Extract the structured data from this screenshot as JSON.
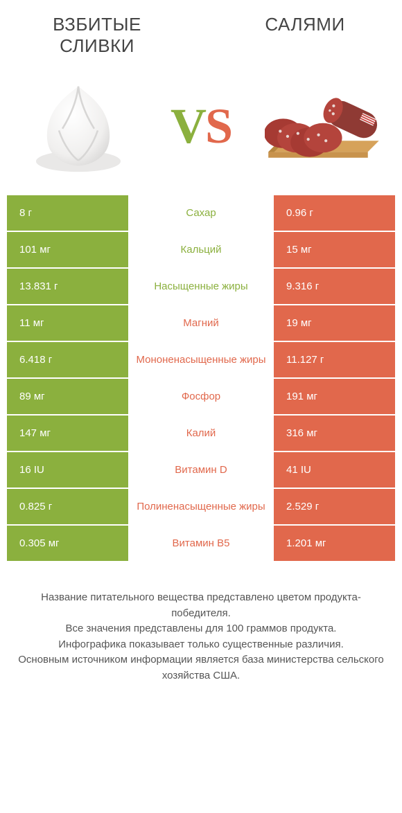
{
  "colors": {
    "green": "#8bb03e",
    "orange": "#e1684c",
    "text": "#444444",
    "rowBorder": "#ffffff"
  },
  "titles": {
    "left": "Взбитые сливки",
    "right": "Салями",
    "vs_v": "V",
    "vs_s": "S"
  },
  "rows": [
    {
      "label": "Сахар",
      "left": "8 г",
      "right": "0.96 г",
      "winner": "left"
    },
    {
      "label": "Кальций",
      "left": "101 мг",
      "right": "15 мг",
      "winner": "left"
    },
    {
      "label": "Насыщенные жиры",
      "left": "13.831 г",
      "right": "9.316 г",
      "winner": "left"
    },
    {
      "label": "Магний",
      "left": "11 мг",
      "right": "19 мг",
      "winner": "right"
    },
    {
      "label": "Мононенасыщенные жиры",
      "left": "6.418 г",
      "right": "11.127 г",
      "winner": "right"
    },
    {
      "label": "Фосфор",
      "left": "89 мг",
      "right": "191 мг",
      "winner": "right"
    },
    {
      "label": "Калий",
      "left": "147 мг",
      "right": "316 мг",
      "winner": "right"
    },
    {
      "label": "Витамин D",
      "left": "16 IU",
      "right": "41 IU",
      "winner": "right"
    },
    {
      "label": "Полиненасыщенные жиры",
      "left": "0.825 г",
      "right": "2.529 г",
      "winner": "right"
    },
    {
      "label": "Витамин B5",
      "left": "0.305 мг",
      "right": "1.201 мг",
      "winner": "right"
    }
  ],
  "footer": {
    "line1": "Название питательного вещества представлено цветом продукта-победителя.",
    "line2": "Все значения представлены для 100 граммов продукта.",
    "line3": "Инфографика показывает только существенные различия.",
    "line4": "Основным источником информации является база министерства сельского хозяйства США."
  }
}
